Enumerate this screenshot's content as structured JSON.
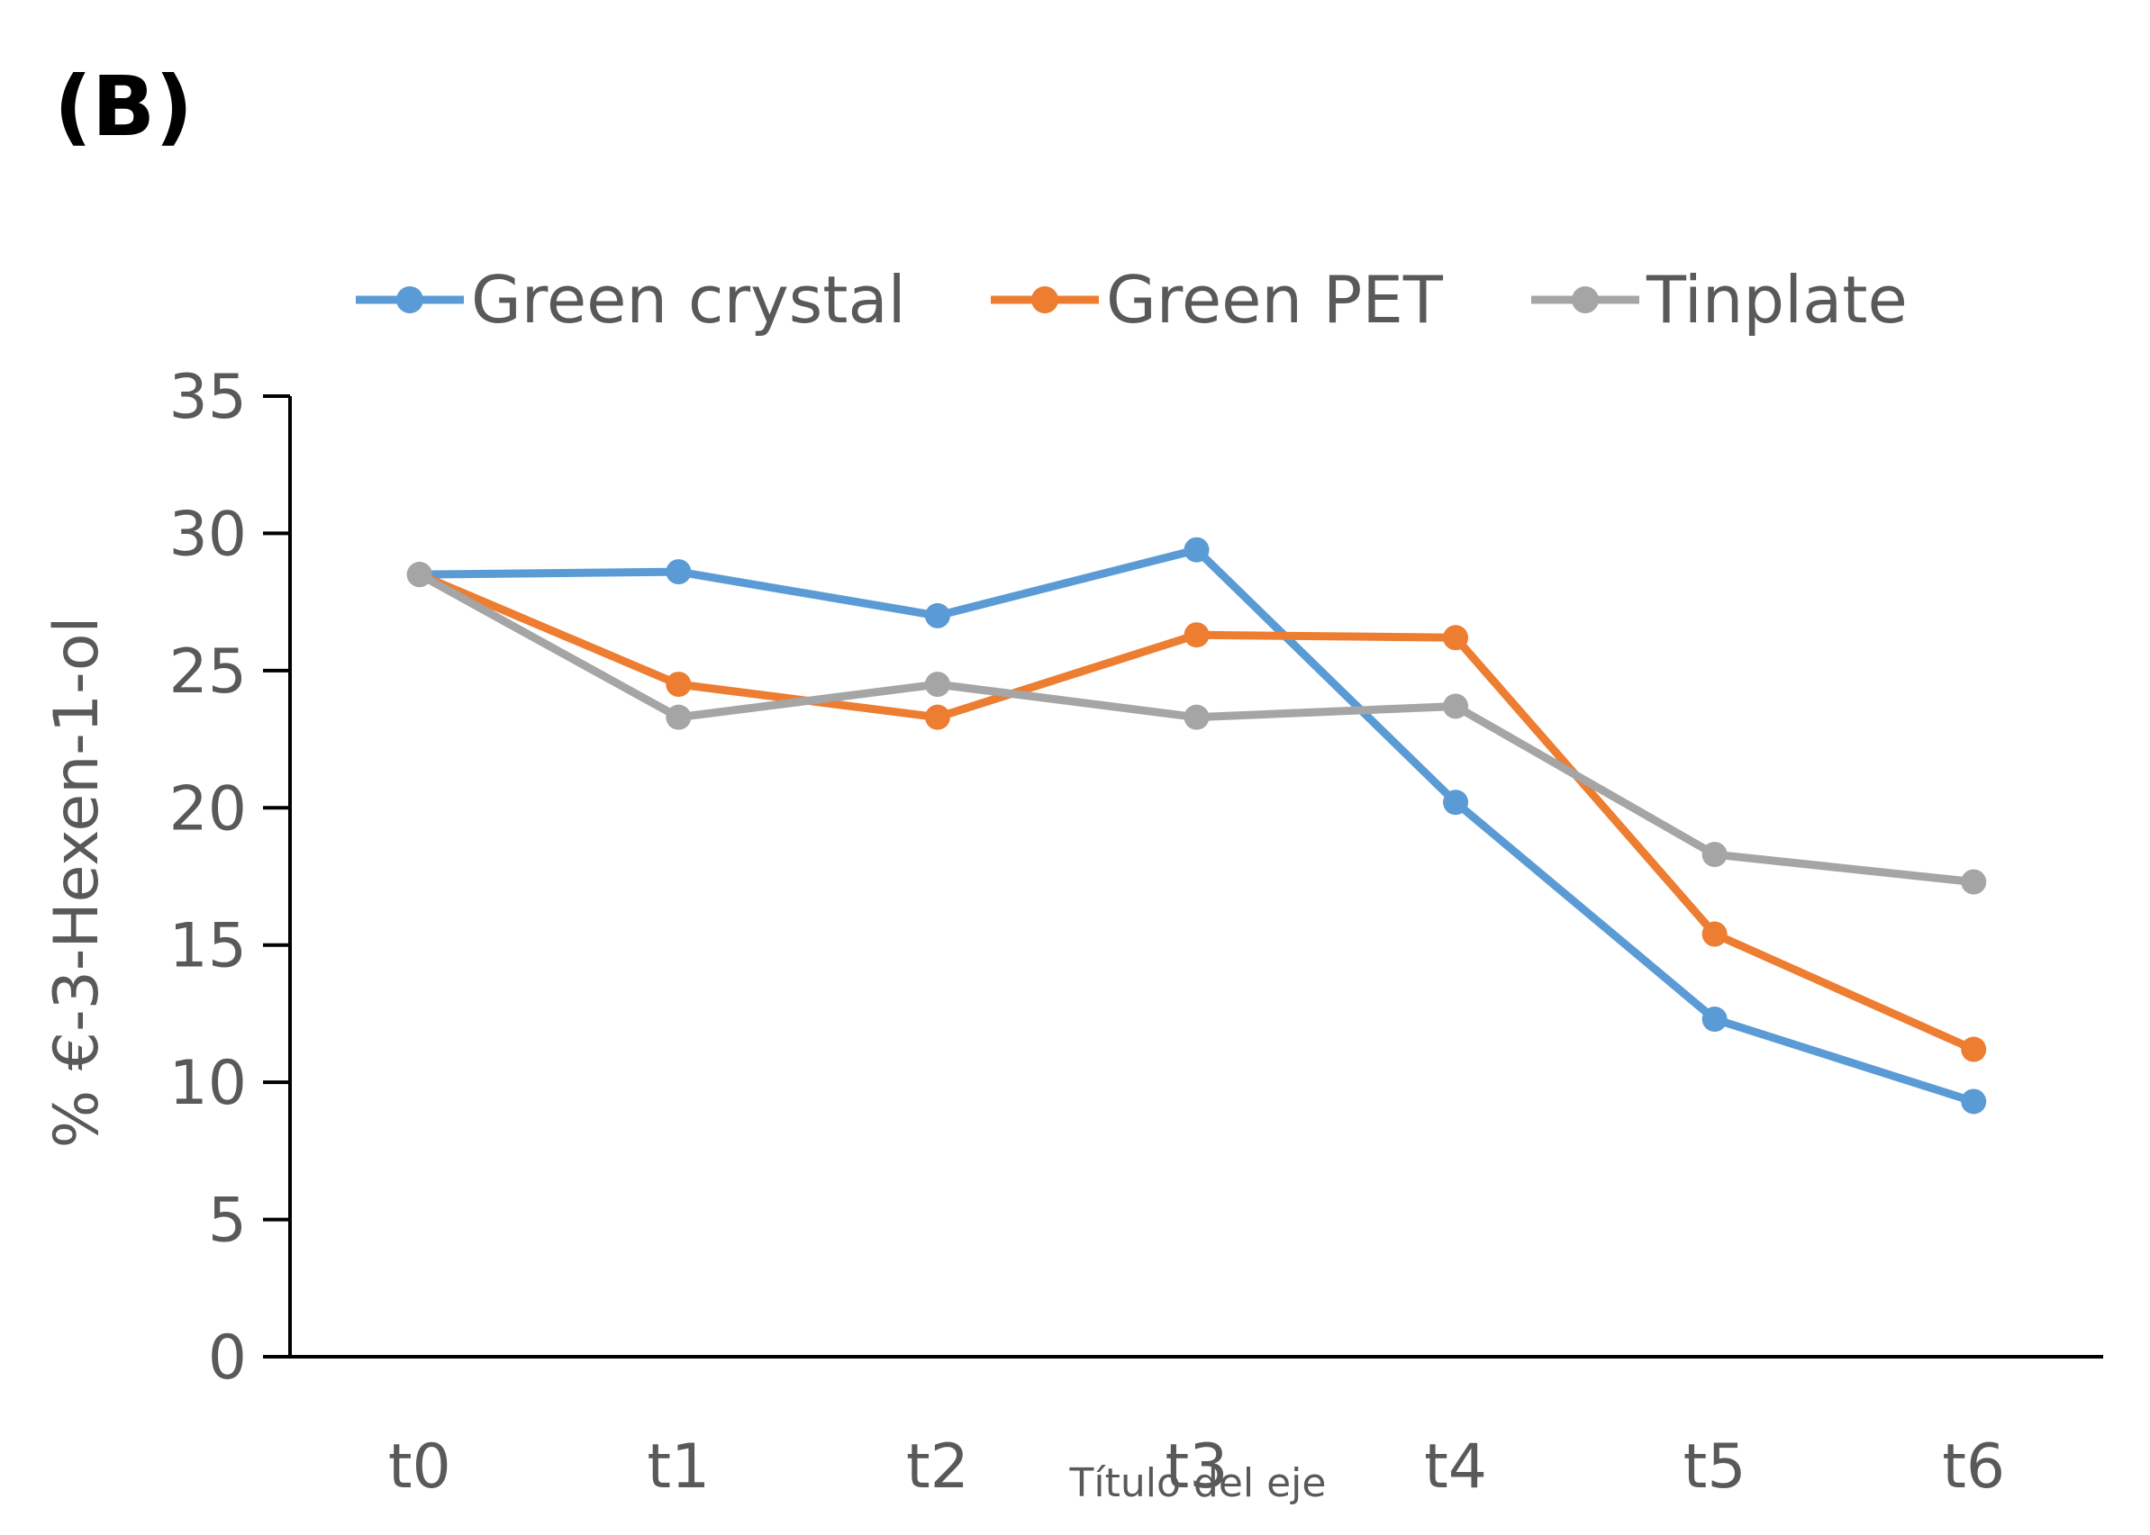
{
  "panel_label": "(B)",
  "chart_data": {
    "type": "line",
    "title": "",
    "xlabel": "Título del eje",
    "ylabel": "% €-3-Hexen-1-ol",
    "categories": [
      "t0",
      "t1",
      "t2",
      "t3",
      "t4",
      "t5",
      "t6"
    ],
    "ylim": [
      0,
      35
    ],
    "yticks": [
      0,
      5,
      10,
      15,
      20,
      25,
      30,
      35
    ],
    "grid": false,
    "legend_position": "top",
    "series": [
      {
        "name": "Green crystal",
        "color": "#5B9BD5",
        "values": [
          28.5,
          28.6,
          27.0,
          29.4,
          20.2,
          12.3,
          9.3
        ]
      },
      {
        "name": "Green PET",
        "color": "#ED7D31",
        "values": [
          28.5,
          24.5,
          23.3,
          26.3,
          26.2,
          15.4,
          11.2
        ]
      },
      {
        "name": "Tinplate",
        "color": "#A5A5A5",
        "values": [
          28.5,
          23.3,
          24.5,
          23.3,
          23.7,
          18.3,
          17.3
        ]
      }
    ]
  }
}
